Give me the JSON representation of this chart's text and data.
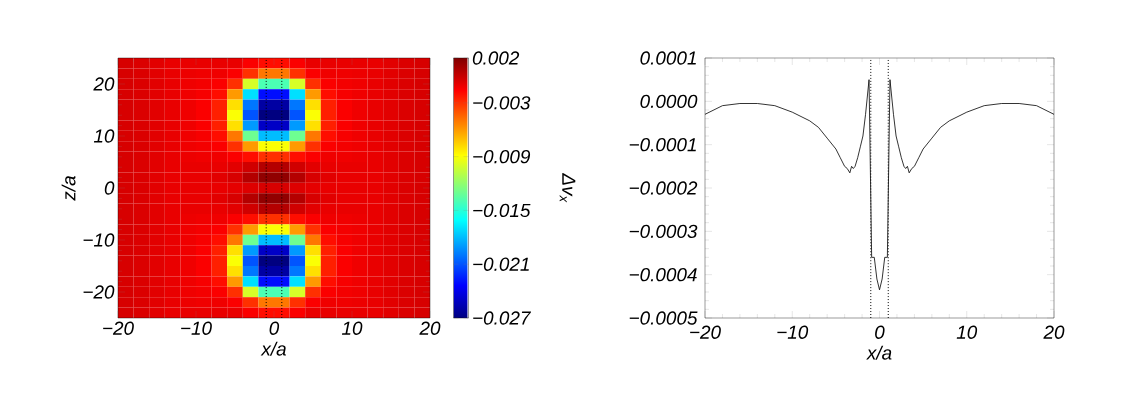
{
  "chart_data": [
    {
      "type": "heatmap",
      "xlabel": "x/a",
      "ylabel": "z/a",
      "clabel": "Δv$_{x}$",
      "x": [
        -19,
        -17,
        -15,
        -13,
        -11,
        -9,
        -7,
        -5,
        -3,
        -1,
        1,
        3,
        5,
        7,
        9,
        11,
        13,
        15,
        17,
        19
      ],
      "y": [
        24,
        22,
        20,
        18,
        16,
        14,
        12,
        10,
        8,
        6,
        4,
        2,
        0,
        -2,
        -4,
        -6,
        -8,
        -10,
        -12,
        -14,
        -16,
        -18,
        -20,
        -22,
        -24
      ],
      "cells": [
        [
          -0.0005,
          -0.0006,
          -0.0008,
          -0.001,
          -0.001,
          -0.001,
          -0.001,
          -0.001,
          -0.0015,
          -0.002,
          -0.002,
          -0.0015,
          -0.001,
          -0.001,
          -0.001,
          -0.001,
          -0.001,
          -0.0008,
          -0.0006,
          -0.0005
        ],
        [
          -0.0005,
          -0.0006,
          -0.0008,
          -0.001,
          -0.0011,
          -0.0012,
          -0.0012,
          -0.0015,
          -0.003,
          -0.005,
          -0.005,
          -0.003,
          -0.0015,
          -0.0012,
          -0.0012,
          -0.0011,
          -0.001,
          -0.0008,
          -0.0006,
          -0.0005
        ],
        [
          -0.0005,
          -0.0006,
          -0.0008,
          -0.001,
          -0.0012,
          -0.0013,
          -0.0015,
          -0.003,
          -0.01,
          -0.014,
          -0.014,
          -0.01,
          -0.003,
          -0.0015,
          -0.0013,
          -0.0012,
          -0.001,
          -0.0008,
          -0.0006,
          -0.0005
        ],
        [
          -0.0005,
          -0.0006,
          -0.0008,
          -0.001,
          -0.0012,
          -0.0014,
          -0.002,
          -0.006,
          -0.017,
          -0.023,
          -0.023,
          -0.017,
          -0.006,
          -0.002,
          -0.0014,
          -0.0012,
          -0.001,
          -0.0008,
          -0.0006,
          -0.0005
        ],
        [
          -0.0005,
          -0.0006,
          -0.0008,
          -0.001,
          -0.0012,
          -0.0015,
          -0.0025,
          -0.008,
          -0.02,
          -0.026,
          -0.026,
          -0.02,
          -0.008,
          -0.0025,
          -0.0015,
          -0.0012,
          -0.001,
          -0.0008,
          -0.0006,
          -0.0005
        ],
        [
          -0.0005,
          -0.0006,
          -0.0008,
          -0.001,
          -0.0012,
          -0.0015,
          -0.0025,
          -0.009,
          -0.021,
          -0.027,
          -0.027,
          -0.021,
          -0.009,
          -0.0025,
          -0.0015,
          -0.0012,
          -0.001,
          -0.0008,
          -0.0006,
          -0.0005
        ],
        [
          -0.0005,
          -0.0006,
          -0.0008,
          -0.001,
          -0.0012,
          -0.0015,
          -0.0025,
          -0.008,
          -0.019,
          -0.025,
          -0.025,
          -0.019,
          -0.008,
          -0.0025,
          -0.0015,
          -0.0012,
          -0.001,
          -0.0008,
          -0.0006,
          -0.0005
        ],
        [
          -0.0005,
          -0.0006,
          -0.0008,
          -0.001,
          -0.0012,
          -0.0014,
          -0.002,
          -0.005,
          -0.013,
          -0.018,
          -0.018,
          -0.013,
          -0.005,
          -0.002,
          -0.0014,
          -0.0012,
          -0.001,
          -0.0008,
          -0.0006,
          -0.0005
        ],
        [
          -0.0005,
          -0.0006,
          -0.0008,
          -0.001,
          -0.0012,
          -0.0013,
          -0.0015,
          -0.003,
          -0.006,
          -0.009,
          -0.009,
          -0.006,
          -0.003,
          -0.0015,
          -0.0013,
          -0.0012,
          -0.001,
          -0.0008,
          -0.0006,
          -0.0005
        ],
        [
          -0.0005,
          -0.0006,
          -0.0008,
          -0.001,
          -0.0011,
          -0.0012,
          -0.0012,
          -0.0015,
          -0.002,
          -0.003,
          -0.003,
          -0.002,
          -0.0015,
          -0.0012,
          -0.0012,
          -0.0011,
          -0.001,
          -0.0008,
          -0.0006,
          -0.0005
        ],
        [
          -0.0005,
          -0.0006,
          -0.0008,
          -0.001,
          -0.001,
          -0.001,
          -0.001,
          -0.0008,
          -0.0003,
          0.0005,
          0.0005,
          -0.0003,
          -0.0008,
          -0.001,
          -0.001,
          -0.001,
          -0.001,
          -0.0008,
          -0.0006,
          -0.0005
        ],
        [
          -0.0005,
          -0.0006,
          -0.0008,
          -0.001,
          -0.001,
          -0.001,
          -0.0008,
          -0.0005,
          0.0005,
          0.0015,
          0.0015,
          0.0005,
          -0.0005,
          -0.0008,
          -0.001,
          -0.001,
          -0.001,
          -0.0008,
          -0.0006,
          -0.0005
        ],
        [
          -0.0005,
          -0.0006,
          -0.0008,
          -0.001,
          -0.001,
          -0.001,
          -0.001,
          -0.0009,
          -0.0007,
          -0.0005,
          -0.0005,
          -0.0007,
          -0.0009,
          -0.001,
          -0.001,
          -0.001,
          -0.001,
          -0.0008,
          -0.0006,
          -0.0005
        ],
        [
          -0.0005,
          -0.0006,
          -0.0008,
          -0.001,
          -0.001,
          -0.001,
          -0.0008,
          -0.0005,
          0.0005,
          0.0015,
          0.0015,
          0.0005,
          -0.0005,
          -0.0008,
          -0.001,
          -0.001,
          -0.001,
          -0.0008,
          -0.0006,
          -0.0005
        ],
        [
          -0.0005,
          -0.0006,
          -0.0008,
          -0.001,
          -0.001,
          -0.001,
          -0.001,
          -0.0008,
          -0.0003,
          0.0005,
          0.0005,
          -0.0003,
          -0.0008,
          -0.001,
          -0.001,
          -0.001,
          -0.001,
          -0.0008,
          -0.0006,
          -0.0005
        ],
        [
          -0.0005,
          -0.0006,
          -0.0008,
          -0.001,
          -0.0011,
          -0.0012,
          -0.0012,
          -0.0015,
          -0.002,
          -0.003,
          -0.003,
          -0.002,
          -0.0015,
          -0.0012,
          -0.0012,
          -0.0011,
          -0.001,
          -0.0008,
          -0.0006,
          -0.0005
        ],
        [
          -0.0005,
          -0.0006,
          -0.0008,
          -0.001,
          -0.0012,
          -0.0013,
          -0.0015,
          -0.003,
          -0.006,
          -0.009,
          -0.009,
          -0.006,
          -0.003,
          -0.0015,
          -0.0013,
          -0.0012,
          -0.001,
          -0.0008,
          -0.0006,
          -0.0005
        ],
        [
          -0.0005,
          -0.0006,
          -0.0008,
          -0.001,
          -0.0012,
          -0.0014,
          -0.002,
          -0.005,
          -0.013,
          -0.018,
          -0.018,
          -0.013,
          -0.005,
          -0.002,
          -0.0014,
          -0.0012,
          -0.001,
          -0.0008,
          -0.0006,
          -0.0005
        ],
        [
          -0.0005,
          -0.0006,
          -0.0008,
          -0.001,
          -0.0012,
          -0.0015,
          -0.0025,
          -0.008,
          -0.019,
          -0.025,
          -0.025,
          -0.019,
          -0.008,
          -0.0025,
          -0.0015,
          -0.0012,
          -0.001,
          -0.0008,
          -0.0006,
          -0.0005
        ],
        [
          -0.0005,
          -0.0006,
          -0.0008,
          -0.001,
          -0.0012,
          -0.0015,
          -0.0025,
          -0.009,
          -0.021,
          -0.027,
          -0.027,
          -0.021,
          -0.009,
          -0.0025,
          -0.0015,
          -0.0012,
          -0.001,
          -0.0008,
          -0.0006,
          -0.0005
        ],
        [
          -0.0005,
          -0.0006,
          -0.0008,
          -0.001,
          -0.0012,
          -0.0015,
          -0.0025,
          -0.008,
          -0.02,
          -0.026,
          -0.026,
          -0.02,
          -0.008,
          -0.0025,
          -0.0015,
          -0.0012,
          -0.001,
          -0.0008,
          -0.0006,
          -0.0005
        ],
        [
          -0.0005,
          -0.0006,
          -0.0008,
          -0.001,
          -0.0012,
          -0.0014,
          -0.002,
          -0.006,
          -0.017,
          -0.023,
          -0.023,
          -0.017,
          -0.006,
          -0.002,
          -0.0014,
          -0.0012,
          -0.001,
          -0.0008,
          -0.0006,
          -0.0005
        ],
        [
          -0.0005,
          -0.0006,
          -0.0008,
          -0.001,
          -0.0012,
          -0.0013,
          -0.0015,
          -0.003,
          -0.01,
          -0.014,
          -0.014,
          -0.01,
          -0.003,
          -0.0015,
          -0.0013,
          -0.0012,
          -0.001,
          -0.0008,
          -0.0006,
          -0.0005
        ],
        [
          -0.0005,
          -0.0006,
          -0.0008,
          -0.001,
          -0.0011,
          -0.0012,
          -0.0012,
          -0.0015,
          -0.003,
          -0.005,
          -0.005,
          -0.003,
          -0.0015,
          -0.0012,
          -0.0012,
          -0.0011,
          -0.001,
          -0.0008,
          -0.0006,
          -0.0005
        ],
        [
          -0.0005,
          -0.0006,
          -0.0008,
          -0.001,
          -0.001,
          -0.001,
          -0.001,
          -0.001,
          -0.0015,
          -0.002,
          -0.002,
          -0.0015,
          -0.001,
          -0.001,
          -0.001,
          -0.001,
          -0.001,
          -0.0008,
          -0.0006,
          -0.0005
        ]
      ],
      "clim": [
        -0.027,
        0.002
      ],
      "cticks": [
        {
          "value": 0.002,
          "label": "0.002"
        },
        {
          "value": -0.003,
          "label": "−0.003"
        },
        {
          "value": -0.009,
          "label": "−0.009"
        },
        {
          "value": -0.015,
          "label": "−0.015"
        },
        {
          "value": -0.021,
          "label": "−0.021"
        },
        {
          "value": -0.027,
          "label": "−0.027"
        }
      ],
      "xlim": [
        -20,
        20
      ],
      "ylim": [
        -25,
        25
      ],
      "xticks": [
        {
          "value": -20,
          "label": "−20"
        },
        {
          "value": -10,
          "label": "−10"
        },
        {
          "value": 0,
          "label": "0"
        },
        {
          "value": 10,
          "label": "10"
        },
        {
          "value": 20,
          "label": "20"
        }
      ],
      "yticks": [
        {
          "value": -20,
          "label": "−20"
        },
        {
          "value": -10,
          "label": "−10"
        },
        {
          "value": 0,
          "label": "0"
        },
        {
          "value": 10,
          "label": "10"
        },
        {
          "value": 20,
          "label": "20"
        }
      ],
      "ref_lines": [
        {
          "axis": "x",
          "value": -1,
          "line_style": "dotted"
        },
        {
          "axis": "x",
          "value": 1,
          "line_style": "dotted"
        }
      ]
    },
    {
      "type": "line",
      "xlabel": "x/a",
      "color": "#000000",
      "x": [
        -20,
        -18,
        -16,
        -15,
        -14,
        -12,
        -10,
        -8,
        -7,
        -6,
        -5,
        -4.5,
        -4,
        -3.7,
        -3.4,
        -3.2,
        -3.0,
        -2.8,
        -2.5,
        -2.2,
        -1.9,
        -1.6,
        -1.2,
        -0.9,
        -0.6,
        -0.3,
        0,
        0.3,
        0.6,
        0.9,
        1.2,
        1.6,
        1.9,
        2.2,
        2.5,
        2.8,
        3.0,
        3.2,
        3.4,
        3.7,
        4,
        4.5,
        5,
        6,
        7,
        8,
        10,
        12,
        14,
        15,
        16,
        18,
        20
      ],
      "values": [
        -3e-05,
        -1e-05,
        -5e-06,
        -5e-06,
        -5e-06,
        -1e-05,
        -2.5e-05,
        -4.5e-05,
        -6e-05,
        -8.5e-05,
        -0.00011,
        -0.00013,
        -0.00015,
        -0.000155,
        -0.000165,
        -0.00015,
        -0.000155,
        -0.00015,
        -0.00013,
        -0.000105,
        -8e-05,
        -3e-05,
        5e-05,
        -0.00036,
        -0.00036,
        -0.00041,
        -0.000435,
        -0.00041,
        -0.00036,
        -0.00036,
        5e-05,
        -3e-05,
        -8e-05,
        -0.000105,
        -0.00013,
        -0.00015,
        -0.000155,
        -0.00015,
        -0.000165,
        -0.000155,
        -0.00015,
        -0.00013,
        -0.00011,
        -8.5e-05,
        -6e-05,
        -4.5e-05,
        -2.5e-05,
        -1e-05,
        -5e-06,
        -5e-06,
        -5e-06,
        -1e-05,
        -3e-05
      ],
      "xlim": [
        -20,
        20
      ],
      "ylim": [
        -0.0005,
        0.0001
      ],
      "xticks": [
        {
          "value": -20,
          "label": "−20"
        },
        {
          "value": -10,
          "label": "−10"
        },
        {
          "value": 0,
          "label": "0"
        },
        {
          "value": 10,
          "label": "10"
        },
        {
          "value": 20,
          "label": "20"
        }
      ],
      "yticks": [
        {
          "value": 0.0001,
          "label": "0.0001"
        },
        {
          "value": 0,
          "label": "0.0000"
        },
        {
          "value": -0.0001,
          "label": "−0.0001"
        },
        {
          "value": -0.0002,
          "label": "−0.0002"
        },
        {
          "value": -0.0003,
          "label": "−0.0003"
        },
        {
          "value": -0.0004,
          "label": "−0.0004"
        },
        {
          "value": -0.0005,
          "label": "−0.0005"
        }
      ],
      "ref_lines": [
        {
          "axis": "x",
          "value": -1,
          "line_style": "dotted"
        },
        {
          "axis": "x",
          "value": 1,
          "line_style": "dotted"
        }
      ]
    }
  ]
}
